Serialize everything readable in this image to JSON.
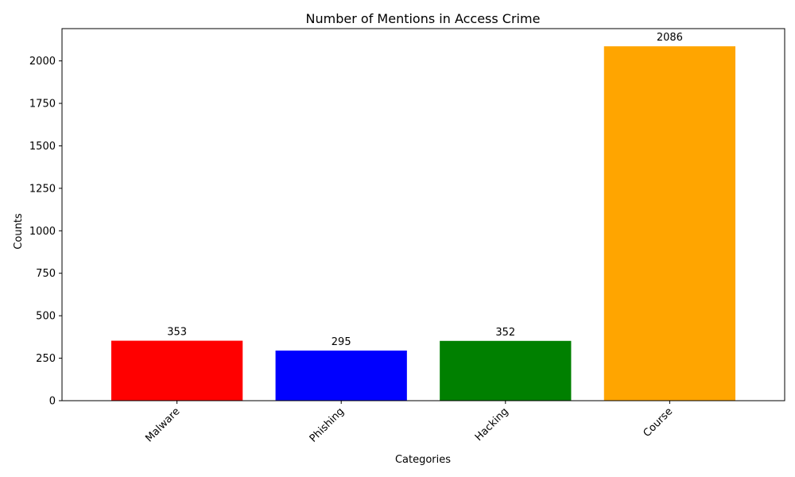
{
  "chart_data": {
    "type": "bar",
    "title": "Number of Mentions in Access Crime",
    "xlabel": "Categories",
    "ylabel": "Counts",
    "categories": [
      "Malware",
      "Phishing",
      "Hacking",
      "Course"
    ],
    "values": [
      353,
      295,
      352,
      2086
    ],
    "colors": [
      "#ff0000",
      "#0000ff",
      "#008000",
      "#ffa500"
    ],
    "ylim": [
      0,
      2190
    ],
    "yticks": [
      0,
      250,
      500,
      750,
      1000,
      1250,
      1500,
      1750,
      2000
    ],
    "xtick_rotation_deg": 45,
    "grid": false,
    "legend": "none"
  }
}
